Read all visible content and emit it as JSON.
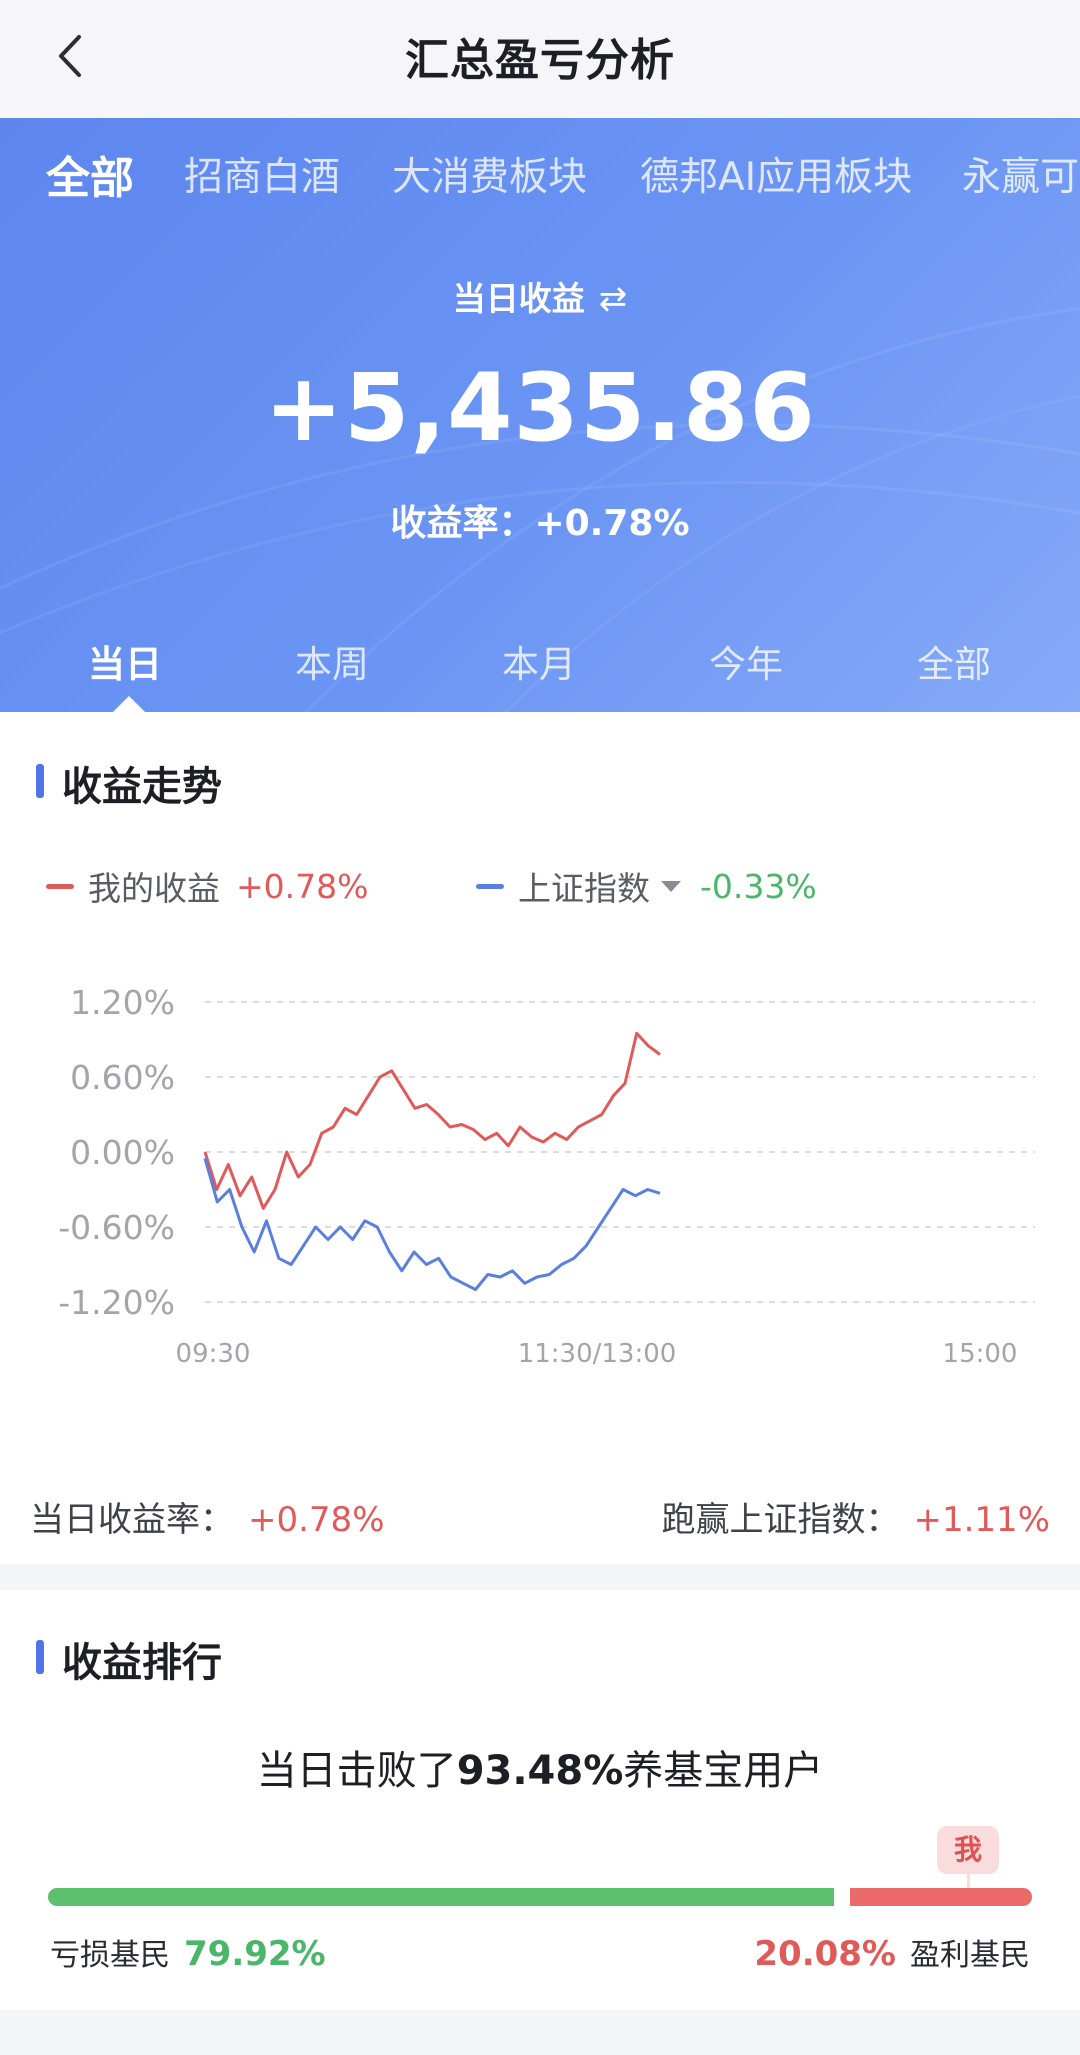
{
  "header": {
    "title": "汇总盈亏分析"
  },
  "fund_tabs": [
    "全部",
    "招商白酒",
    "大消费板块",
    "德邦AI应用板块",
    "永赢可"
  ],
  "summary": {
    "label": "当日收益",
    "swap_icon": "swap-arrows-icon",
    "amount": "+5,435.86",
    "rate_text": "收益率：+0.78%"
  },
  "period_tabs": [
    "当日",
    "本周",
    "本月",
    "今年",
    "全部"
  ],
  "trend": {
    "title": "收益走势",
    "my_label": "我的收益",
    "my_value": "+0.78%",
    "index_label": "上证指数",
    "index_value": "-0.33%",
    "daily_rate_label": "当日收益率：",
    "daily_rate_value": "+0.78%",
    "beat_label": "跑赢上证指数：",
    "beat_value": "+1.11%"
  },
  "chart_data": {
    "type": "line",
    "ylim": [
      -1.2,
      1.2
    ],
    "y_ticks": [
      "1.20%",
      "0.60%",
      "0.00%",
      "-0.60%",
      "-1.20%"
    ],
    "x_ticks": [
      "09:30",
      "11:30/13:00",
      "15:00"
    ],
    "colors": {
      "mine": "#e05a5a",
      "index": "#5b7fe0"
    },
    "series": [
      {
        "name": "我的收益",
        "values": [
          0.0,
          -0.3,
          -0.1,
          -0.35,
          -0.2,
          -0.45,
          -0.3,
          0.0,
          -0.2,
          -0.1,
          0.15,
          0.2,
          0.35,
          0.3,
          0.45,
          0.6,
          0.65,
          0.5,
          0.35,
          0.38,
          0.3,
          0.2,
          0.22,
          0.18,
          0.1,
          0.15,
          0.05,
          0.2,
          0.12,
          0.08,
          0.15,
          0.1,
          0.2,
          0.25,
          0.3,
          0.45,
          0.55,
          0.95,
          0.85,
          0.78
        ]
      },
      {
        "name": "上证指数",
        "values": [
          -0.05,
          -0.4,
          -0.3,
          -0.6,
          -0.8,
          -0.55,
          -0.85,
          -0.9,
          -0.75,
          -0.6,
          -0.7,
          -0.6,
          -0.7,
          -0.55,
          -0.6,
          -0.8,
          -0.95,
          -0.8,
          -0.9,
          -0.85,
          -1.0,
          -1.05,
          -1.1,
          -0.98,
          -1.0,
          -0.95,
          -1.05,
          -1.0,
          -0.98,
          -0.9,
          -0.85,
          -0.75,
          -0.6,
          -0.45,
          -0.3,
          -0.35,
          -0.3,
          -0.33
        ]
      }
    ]
  },
  "ranking": {
    "title": "收益排行",
    "beat_prefix": "当日击败了",
    "beat_value": "93.48%",
    "beat_suffix": "养基宝用户",
    "me_badge": "我",
    "loss_label": "亏损基民",
    "loss_value": "79.92%",
    "loss_fraction": 0.7992,
    "profit_label": "盈利基民",
    "profit_value": "20.08%",
    "profit_fraction": 0.2008
  }
}
